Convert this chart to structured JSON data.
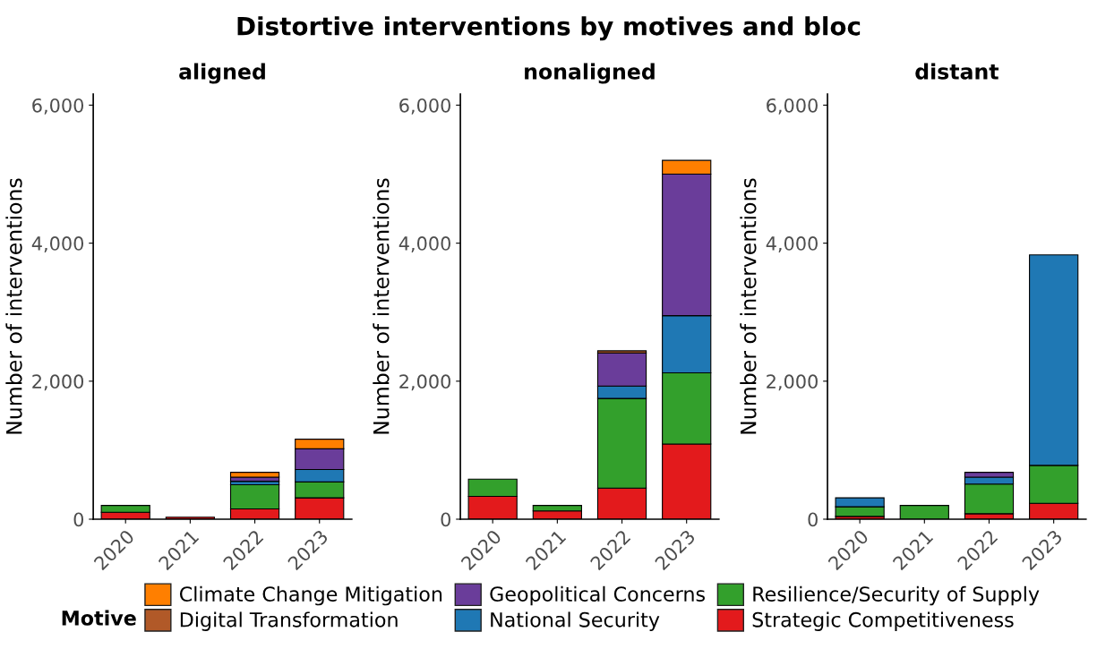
{
  "chart_data": [
    {
      "type": "bar",
      "title": "aligned",
      "ylabel": "Number of interventions",
      "annotations": [
        "Distortive interventions by motives and bloc"
      ],
      "legend_title": "Motive",
      "legend": "bottom",
      "stacked": true,
      "grid": false,
      "categories": [
        "2020",
        "2021",
        "2022",
        "2023"
      ],
      "ylim": [
        0,
        6160
      ],
      "yticks": [
        0,
        {
          "value": 2000,
          "label": "2,000"
        },
        {
          "value": 4000,
          "label": "4,000"
        },
        {
          "value": 6000,
          "label": "6,000"
        }
      ],
      "series": [
        {
          "name": "Strategic Competitiveness",
          "color": "#e31a1c",
          "values": [
            100,
            30,
            150,
            310
          ]
        },
        {
          "name": "Resilience/Security of Supply",
          "color": "#33a02c",
          "values": [
            100,
            null,
            350,
            230
          ]
        },
        {
          "name": "National Security",
          "color": "#1f78b4",
          "values": [
            null,
            null,
            50,
            180
          ]
        },
        {
          "name": "Geopolitical Concerns",
          "color": "#6a3d9a",
          "values": [
            null,
            null,
            60,
            300
          ]
        },
        {
          "name": "Digital Transformation",
          "color": "#b15928",
          "values": [
            null,
            null,
            null,
            null
          ]
        },
        {
          "name": "Climate Change Mitigation",
          "color": "#ff7f00",
          "values": [
            null,
            null,
            70,
            140
          ]
        }
      ]
    },
    {
      "type": "bar",
      "title": "nonaligned",
      "ylabel": "Number of interventions",
      "stacked": true,
      "grid": false,
      "categories": [
        "2020",
        "2021",
        "2022",
        "2023"
      ],
      "ylim": [
        0,
        6160
      ],
      "yticks": [
        0,
        {
          "value": 2000,
          "label": "2,000"
        },
        {
          "value": 4000,
          "label": "4,000"
        },
        {
          "value": 6000,
          "label": "6,000"
        }
      ],
      "series": [
        {
          "color": "#e31a1c",
          "values": [
            330,
            120,
            450,
            1090
          ]
        },
        {
          "color": "#33a02c",
          "values": [
            250,
            80,
            1300,
            1030
          ]
        },
        {
          "color": "#1f78b4",
          "values": [
            null,
            null,
            180,
            830
          ]
        },
        {
          "color": "#6a3d9a",
          "values": [
            null,
            null,
            480,
            2050
          ]
        },
        {
          "color": "#b15928",
          "values": [
            null,
            null,
            30,
            null
          ]
        },
        {
          "color": "#ff7f00",
          "values": [
            null,
            null,
            null,
            200
          ]
        }
      ]
    },
    {
      "type": "bar",
      "title": "distant",
      "ylabel": "Number of interventions",
      "stacked": true,
      "grid": false,
      "categories": [
        "2020",
        "2021",
        "2022",
        "2023"
      ],
      "ylim": [
        0,
        6160
      ],
      "yticks": [
        0,
        {
          "value": 2000,
          "label": "2,000"
        },
        {
          "value": 4000,
          "label": "4,000"
        },
        {
          "value": 6000,
          "label": "6,000"
        }
      ],
      "series": [
        {
          "color": "#e31a1c",
          "values": [
            40,
            null,
            80,
            230
          ]
        },
        {
          "color": "#33a02c",
          "values": [
            140,
            200,
            430,
            550
          ]
        },
        {
          "color": "#1f78b4",
          "values": [
            130,
            null,
            100,
            3050
          ]
        },
        {
          "color": "#6a3d9a",
          "values": [
            null,
            null,
            70,
            null
          ]
        }
      ]
    }
  ]
}
